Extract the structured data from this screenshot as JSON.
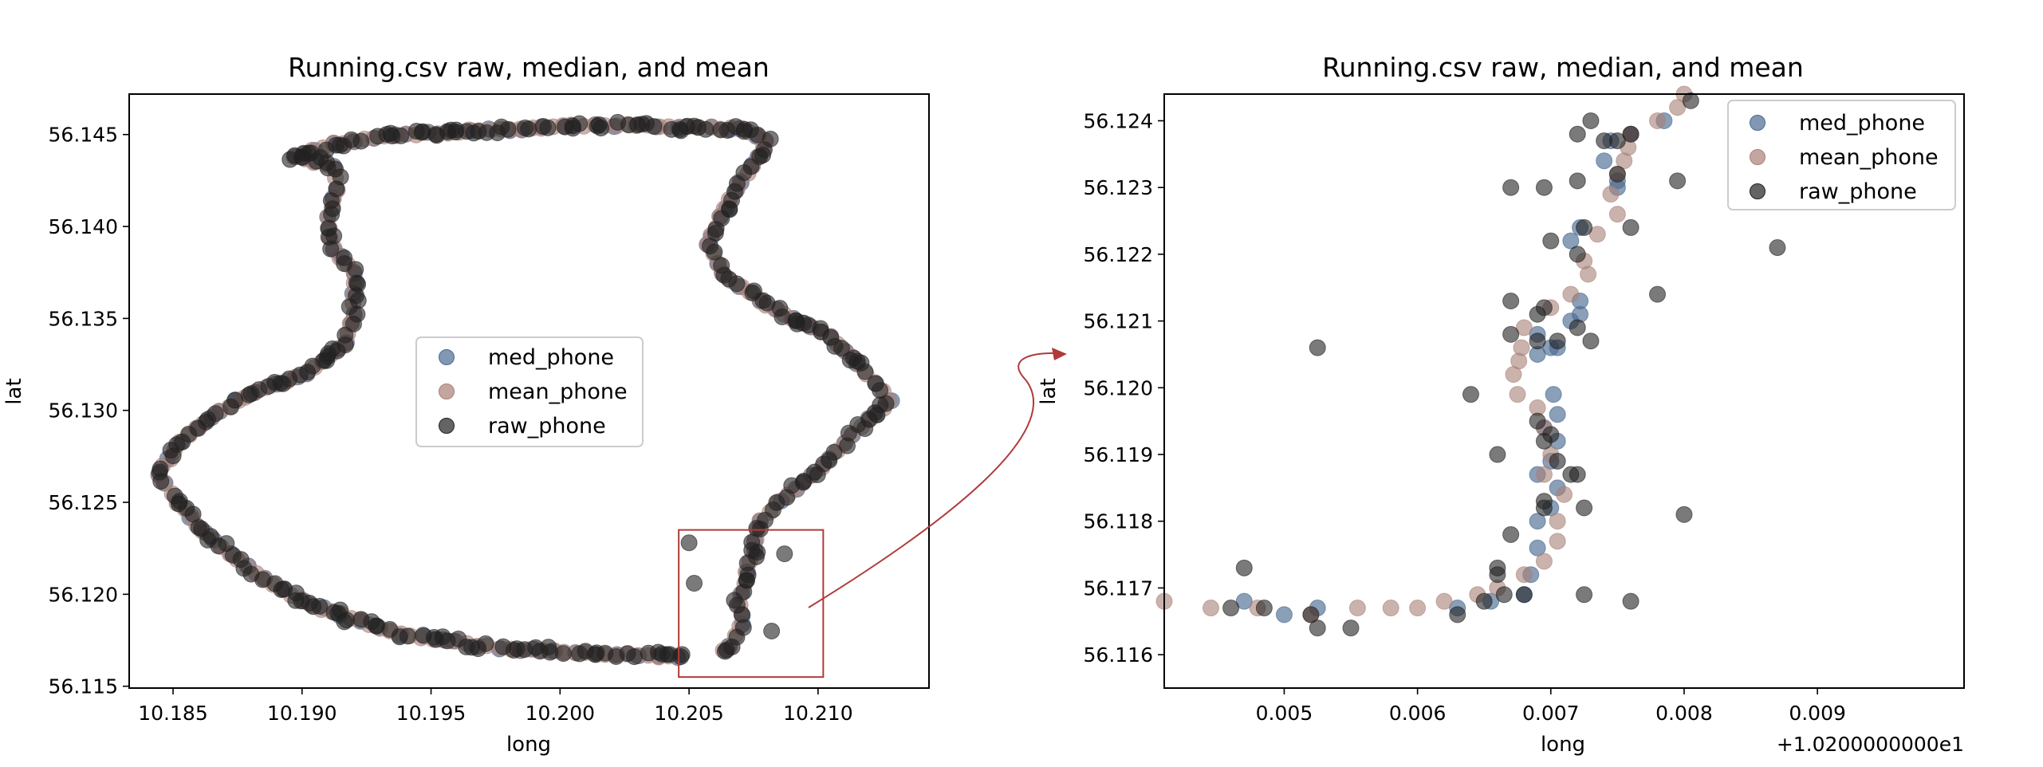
{
  "colors": {
    "med_phone": "#4c6b92",
    "mean_phone": "#a98077",
    "raw_phone": "#222222",
    "connector": "#b03a3a"
  },
  "chart_data": [
    {
      "type": "scatter",
      "title": "Running.csv raw, median, and mean",
      "xlabel": "long",
      "ylabel": "lat",
      "xlim": [
        10.1833,
        10.2143
      ],
      "ylim": [
        56.1149,
        56.1472
      ],
      "xticks": [
        10.185,
        10.19,
        10.195,
        10.2,
        10.205,
        10.21
      ],
      "xtick_labels": [
        "10.185",
        "10.190",
        "10.195",
        "10.200",
        "10.205",
        "10.210"
      ],
      "yticks": [
        56.115,
        56.12,
        56.125,
        56.13,
        56.135,
        56.14,
        56.145
      ],
      "ytick_labels": [
        "56.115",
        "56.120",
        "56.125",
        "56.130",
        "56.135",
        "56.140",
        "56.145"
      ],
      "legend": [
        "med_phone",
        "mean_phone",
        "raw_phone"
      ],
      "legend_position": "center",
      "zoom_box": {
        "x": [
          10.2046,
          10.2102
        ],
        "y": [
          56.1155,
          56.1235
        ]
      },
      "route": [
        [
          10.2046,
          56.1166
        ],
        [
          10.2006,
          56.1168
        ],
        [
          10.1985,
          56.117
        ],
        [
          10.1968,
          56.1172
        ],
        [
          10.1955,
          56.1175
        ],
        [
          10.1938,
          56.1178
        ],
        [
          10.1922,
          56.1186
        ],
        [
          10.1908,
          56.1192
        ],
        [
          10.19,
          56.1197
        ],
        [
          10.1885,
          56.1208
        ],
        [
          10.1872,
          56.1222
        ],
        [
          10.1862,
          56.1234
        ],
        [
          10.1852,
          56.125
        ],
        [
          10.1844,
          56.1265
        ],
        [
          10.1853,
          56.1283
        ],
        [
          10.1868,
          56.13
        ],
        [
          10.1882,
          56.131
        ],
        [
          10.1902,
          56.132
        ],
        [
          10.1917,
          56.1337
        ],
        [
          10.192,
          56.1352
        ],
        [
          10.192,
          56.1375
        ],
        [
          10.1912,
          56.1388
        ],
        [
          10.191,
          56.1405
        ],
        [
          10.1914,
          56.142
        ],
        [
          10.1913,
          56.1432
        ],
        [
          10.1897,
          56.1438
        ],
        [
          10.1912,
          56.1445
        ],
        [
          10.194,
          56.145
        ],
        [
          10.1965,
          56.1452
        ],
        [
          10.1985,
          56.1453
        ],
        [
          10.2005,
          56.1455
        ],
        [
          10.203,
          56.1455
        ],
        [
          10.205,
          56.1454
        ],
        [
          10.207,
          56.1453
        ],
        [
          10.208,
          56.1447
        ],
        [
          10.2075,
          56.1433
        ],
        [
          10.2068,
          56.142
        ],
        [
          10.2062,
          56.1405
        ],
        [
          10.2057,
          56.139
        ],
        [
          10.2063,
          56.1375
        ],
        [
          10.2077,
          56.136
        ],
        [
          10.209,
          56.135
        ],
        [
          10.2105,
          56.134
        ],
        [
          10.2115,
          56.1325
        ],
        [
          10.2122,
          56.1315
        ],
        [
          10.2128,
          56.1305
        ],
        [
          10.212,
          56.1295
        ],
        [
          10.211,
          56.1282
        ],
        [
          10.2098,
          56.1265
        ],
        [
          10.2085,
          56.125
        ],
        [
          10.2078,
          56.124
        ],
        [
          10.2075,
          56.1224
        ],
        [
          10.207,
          56.12
        ],
        [
          10.207,
          56.1183
        ],
        [
          10.2066,
          56.1172
        ],
        [
          10.206,
          56.1168
        ]
      ]
    },
    {
      "type": "scatter",
      "title": "Running.csv raw, median, and mean",
      "xlabel": "long",
      "ylabel": "lat",
      "offset_text": "+1.0200000000e1",
      "xlim": [
        0.0041,
        0.0101
      ],
      "ylim": [
        56.1155,
        56.1244
      ],
      "xticks": [
        0.005,
        0.006,
        0.007,
        0.008,
        0.009
      ],
      "xtick_labels": [
        "0.005",
        "0.006",
        "0.007",
        "0.008",
        "0.009"
      ],
      "yticks": [
        56.116,
        56.117,
        56.118,
        56.119,
        56.12,
        56.121,
        56.122,
        56.123,
        56.124
      ],
      "ytick_labels": [
        "56.116",
        "56.117",
        "56.118",
        "56.119",
        "56.120",
        "56.121",
        "56.122",
        "56.123",
        "56.124"
      ],
      "legend": [
        "med_phone",
        "mean_phone",
        "raw_phone"
      ],
      "legend_position": "upper right",
      "series": [
        {
          "name": "mean_phone",
          "points": [
            [
              0.0041,
              56.1168
            ],
            [
              0.00445,
              56.1167
            ],
            [
              0.0048,
              56.1167
            ],
            [
              0.0052,
              56.1166
            ],
            [
              0.00555,
              56.1167
            ],
            [
              0.0058,
              56.1167
            ],
            [
              0.006,
              56.1167
            ],
            [
              0.0062,
              56.1168
            ],
            [
              0.00645,
              56.1169
            ],
            [
              0.0066,
              56.117
            ],
            [
              0.0068,
              56.1172
            ],
            [
              0.00695,
              56.1174
            ],
            [
              0.00705,
              56.1177
            ],
            [
              0.00705,
              56.118
            ],
            [
              0.0071,
              56.1184
            ],
            [
              0.00695,
              56.1187
            ],
            [
              0.007,
              56.119
            ],
            [
              0.00695,
              56.1194
            ],
            [
              0.0069,
              56.1197
            ],
            [
              0.00675,
              56.1199
            ],
            [
              0.00672,
              56.1202
            ],
            [
              0.00676,
              56.1204
            ],
            [
              0.00678,
              56.1206
            ],
            [
              0.0068,
              56.1209
            ],
            [
              0.007,
              56.1212
            ],
            [
              0.00715,
              56.1214
            ],
            [
              0.00728,
              56.1217
            ],
            [
              0.00725,
              56.1219
            ],
            [
              0.00735,
              56.1223
            ],
            [
              0.0075,
              56.1226
            ],
            [
              0.00745,
              56.1229
            ],
            [
              0.0075,
              56.1232
            ],
            [
              0.00755,
              56.1234
            ],
            [
              0.00758,
              56.1236
            ],
            [
              0.0076,
              56.1238
            ],
            [
              0.0078,
              56.124
            ],
            [
              0.00795,
              56.1242
            ],
            [
              0.008,
              56.1244
            ]
          ]
        },
        {
          "name": "med_phone",
          "points": [
            [
              0.0047,
              56.1168
            ],
            [
              0.00525,
              56.1167
            ],
            [
              0.005,
              56.1166
            ],
            [
              0.0063,
              56.1167
            ],
            [
              0.00655,
              56.1168
            ],
            [
              0.0068,
              56.1169
            ],
            [
              0.00685,
              56.1172
            ],
            [
              0.0069,
              56.1176
            ],
            [
              0.0069,
              56.118
            ],
            [
              0.007,
              56.1182
            ],
            [
              0.00705,
              56.1185
            ],
            [
              0.0069,
              56.1187
            ],
            [
              0.007,
              56.1189
            ],
            [
              0.00705,
              56.1192
            ],
            [
              0.00695,
              56.1194
            ],
            [
              0.00705,
              56.1196
            ],
            [
              0.00702,
              56.1199
            ],
            [
              0.0069,
              56.1205
            ],
            [
              0.007,
              56.1206
            ],
            [
              0.00705,
              56.1206
            ],
            [
              0.0069,
              56.1208
            ],
            [
              0.00715,
              56.121
            ],
            [
              0.00722,
              56.1211
            ],
            [
              0.00722,
              56.1213
            ],
            [
              0.00715,
              56.1222
            ],
            [
              0.00722,
              56.1224
            ],
            [
              0.0075,
              56.123
            ],
            [
              0.0075,
              56.1231
            ],
            [
              0.0074,
              56.1234
            ],
            [
              0.00745,
              56.1237
            ],
            [
              0.0076,
              56.1238
            ],
            [
              0.00785,
              56.124
            ]
          ]
        },
        {
          "name": "raw_phone",
          "points": [
            [
              0.0047,
              56.1173
            ],
            [
              0.0046,
              56.1167
            ],
            [
              0.00485,
              56.1167
            ],
            [
              0.0052,
              56.1166
            ],
            [
              0.00525,
              56.1164
            ],
            [
              0.0055,
              56.1164
            ],
            [
              0.0063,
              56.1166
            ],
            [
              0.0065,
              56.1168
            ],
            [
              0.00665,
              56.1169
            ],
            [
              0.0068,
              56.1169
            ],
            [
              0.0066,
              56.1172
            ],
            [
              0.0066,
              56.1173
            ],
            [
              0.0067,
              56.1178
            ],
            [
              0.00695,
              56.1182
            ],
            [
              0.00695,
              56.1183
            ],
            [
              0.00725,
              56.1182
            ],
            [
              0.0072,
              56.1187
            ],
            [
              0.00715,
              56.1187
            ],
            [
              0.00705,
              56.1189
            ],
            [
              0.00695,
              56.1192
            ],
            [
              0.007,
              56.1193
            ],
            [
              0.0069,
              56.1195
            ],
            [
              0.0066,
              56.119
            ],
            [
              0.0064,
              56.1199
            ],
            [
              0.00525,
              56.1206
            ],
            [
              0.0067,
              56.1208
            ],
            [
              0.0069,
              56.1207
            ],
            [
              0.00705,
              56.1207
            ],
            [
              0.0073,
              56.1207
            ],
            [
              0.0069,
              56.1211
            ],
            [
              0.00695,
              56.1212
            ],
            [
              0.0067,
              56.1213
            ],
            [
              0.0072,
              56.1209
            ],
            [
              0.00725,
              56.1224
            ],
            [
              0.0072,
              56.122
            ],
            [
              0.007,
              56.1222
            ],
            [
              0.0067,
              56.123
            ],
            [
              0.00695,
              56.123
            ],
            [
              0.0072,
              56.1231
            ],
            [
              0.0075,
              56.1232
            ],
            [
              0.0076,
              56.1224
            ],
            [
              0.00795,
              56.1231
            ],
            [
              0.0078,
              56.1214
            ],
            [
              0.0072,
              56.1238
            ],
            [
              0.0074,
              56.1237
            ],
            [
              0.0075,
              56.1237
            ],
            [
              0.0076,
              56.1238
            ],
            [
              0.0073,
              56.124
            ],
            [
              0.00805,
              56.1243
            ],
            [
              0.0087,
              56.1221
            ],
            [
              0.008,
              56.1181
            ],
            [
              0.0076,
              56.1168
            ],
            [
              0.00725,
              56.1169
            ]
          ]
        }
      ]
    }
  ]
}
